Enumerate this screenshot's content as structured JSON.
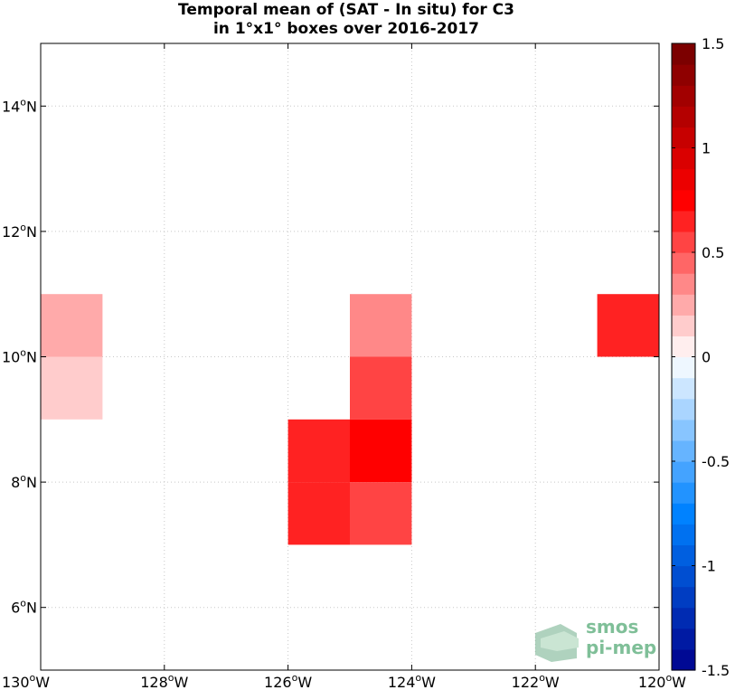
{
  "title": {
    "line1": "Temporal mean of (SAT - In situ) for C3",
    "line2": "in 1°x1° boxes over 2016-2017"
  },
  "chart_data": {
    "type": "heatmap",
    "lon_range": [
      -130,
      -120
    ],
    "lat_range": [
      5,
      15
    ],
    "x_ticks": [
      {
        "value": -130,
        "label": "130°W"
      },
      {
        "value": -128,
        "label": "128°W"
      },
      {
        "value": -126,
        "label": "126°W"
      },
      {
        "value": -124,
        "label": "124°W"
      },
      {
        "value": -122,
        "label": "122°W"
      },
      {
        "value": -120,
        "label": "120°W"
      }
    ],
    "y_ticks": [
      {
        "value": 6,
        "label": "6°N"
      },
      {
        "value": 8,
        "label": "8°N"
      },
      {
        "value": 10,
        "label": "10°N"
      },
      {
        "value": 12,
        "label": "12°N"
      },
      {
        "value": 14,
        "label": "14°N"
      }
    ],
    "grid": true,
    "cells": [
      {
        "lon": -130,
        "lat": 10,
        "value": 0.22
      },
      {
        "lon": -130,
        "lat": 9,
        "value": 0.12
      },
      {
        "lon": -125,
        "lat": 10,
        "value": 0.35
      },
      {
        "lon": -125,
        "lat": 9,
        "value": 0.52
      },
      {
        "lon": -126,
        "lat": 8,
        "value": 0.62
      },
      {
        "lon": -125,
        "lat": 8,
        "value": 0.78
      },
      {
        "lon": -126,
        "lat": 7,
        "value": 0.62
      },
      {
        "lon": -125,
        "lat": 7,
        "value": 0.5
      },
      {
        "lon": -121,
        "lat": 10,
        "value": 0.62
      }
    ],
    "colorbar": {
      "range": [
        -1.5,
        1.5
      ],
      "levels": 30,
      "ticks": [
        {
          "value": 1.5,
          "label": "1.5"
        },
        {
          "value": 1,
          "label": "1"
        },
        {
          "value": 0.5,
          "label": "0.5"
        },
        {
          "value": 0,
          "label": "0"
        },
        {
          "value": -0.5,
          "label": "-0.5"
        },
        {
          "value": -1,
          "label": "-1"
        },
        {
          "value": -1.5,
          "label": "-1.5"
        }
      ]
    }
  },
  "watermark": {
    "line1": "smos",
    "line2": "pi-mep",
    "color": "#7fbf98"
  }
}
